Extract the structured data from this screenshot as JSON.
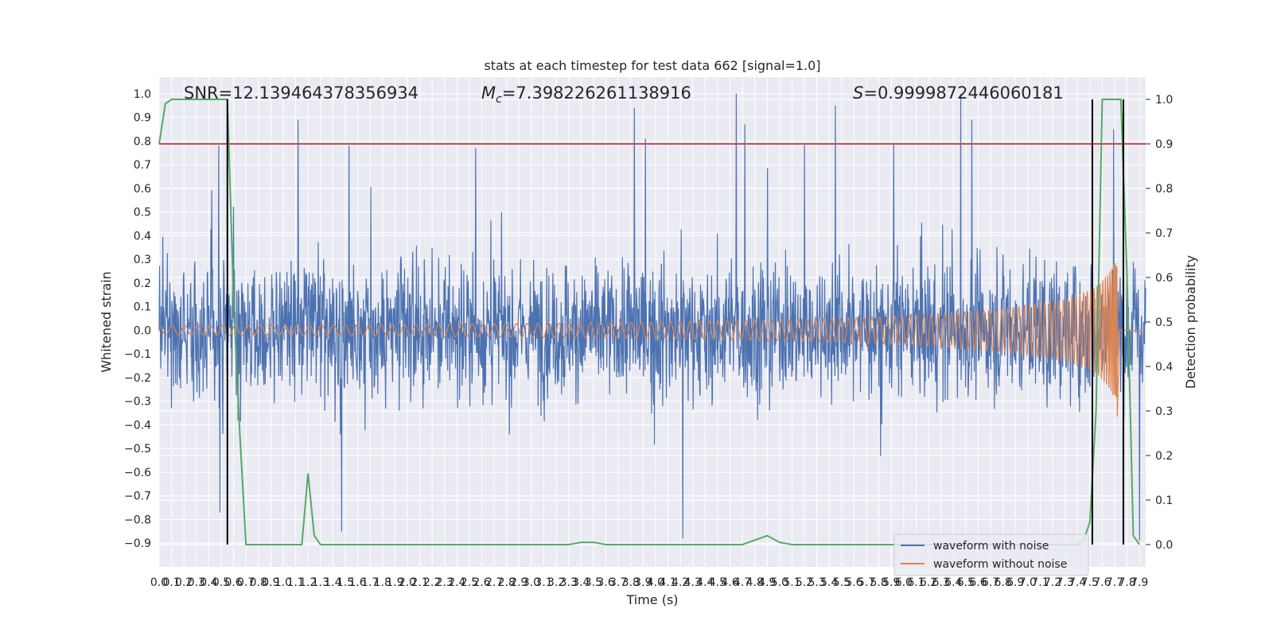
{
  "chart_data": {
    "type": "line",
    "title": "stats at each timestep for test data 662 [signal=1.0]",
    "xlabel": "Time (s)",
    "ylabel_left": "Whitened strain",
    "ylabel_right": "Detection probability",
    "xlim": [
      0.0,
      7.95
    ],
    "ylim_left": [
      -1.0,
      1.07
    ],
    "ylim_right": [
      -0.05,
      1.05
    ],
    "grid": true,
    "legend_position": "bottom-right",
    "x_ticks": [
      "0.0",
      "0.1",
      "0.2",
      "0.3",
      "0.4",
      "0.5",
      "0.6",
      "0.7",
      "0.8",
      "0.9",
      "1.0",
      "1.1",
      "1.2",
      "1.3",
      "1.4",
      "1.5",
      "1.6",
      "1.7",
      "1.8",
      "1.9",
      "2.0",
      "2.1",
      "2.2",
      "2.3",
      "2.4",
      "2.5",
      "2.6",
      "2.7",
      "2.8",
      "2.9",
      "3.0",
      "3.1",
      "3.2",
      "3.3",
      "3.4",
      "3.5",
      "3.6",
      "3.7",
      "3.8",
      "3.9",
      "4.0",
      "4.1",
      "4.2",
      "4.3",
      "4.4",
      "4.5",
      "4.6",
      "4.7",
      "4.8",
      "4.9",
      "5.0",
      "5.1",
      "5.2",
      "5.3",
      "5.4",
      "5.5",
      "5.6",
      "5.7",
      "5.8",
      "5.9",
      "6.0",
      "6.1",
      "6.2",
      "6.3",
      "6.4",
      "6.5",
      "6.6",
      "6.7",
      "6.8",
      "6.9",
      "7.0",
      "7.1",
      "7.2",
      "7.3",
      "7.4",
      "7.5",
      "7.6",
      "7.7",
      "7.8",
      "7.9"
    ],
    "y_ticks_left": [
      "-0.9",
      "-0.8",
      "-0.7",
      "-0.6",
      "-0.5",
      "-0.4",
      "-0.3",
      "-0.2",
      "-0.1",
      "0.0",
      "0.1",
      "0.2",
      "0.3",
      "0.4",
      "0.5",
      "0.6",
      "0.7",
      "0.8",
      "0.9",
      "1.0"
    ],
    "y_ticks_right": [
      "0.0",
      "0.1",
      "0.2",
      "0.3",
      "0.4",
      "0.5",
      "0.6",
      "0.7",
      "0.8",
      "0.9",
      "1.0"
    ],
    "annotations": {
      "snr": "SNR=12.139464378356934",
      "mc_symbol": "M",
      "mc_sub": "c",
      "mc_value": "=7.398226261138916",
      "s_symbol": "S",
      "s_value": "=0.9999872446060181"
    },
    "threshold": {
      "axis": "right",
      "value": 0.9,
      "color": "#c44e52"
    },
    "vertical_lines": [
      0.55,
      7.52,
      7.77
    ],
    "series": [
      {
        "name": "waveform with noise",
        "axis": "left",
        "color": "#4c72b0",
        "note": "whitened strain noise, dense oscillation within approx. -0.6..0.6 with peaks",
        "peaks": [
          {
            "x": 0.48,
            "y": 0.78
          },
          {
            "x": 1.12,
            "y": 0.89
          },
          {
            "x": 1.53,
            "y": 0.78
          },
          {
            "x": 2.55,
            "y": 0.77
          },
          {
            "x": 3.83,
            "y": 0.94
          },
          {
            "x": 3.92,
            "y": 0.81
          },
          {
            "x": 4.65,
            "y": 1.0
          },
          {
            "x": 4.72,
            "y": 0.87
          },
          {
            "x": 5.45,
            "y": 0.95
          },
          {
            "x": 5.92,
            "y": 0.79
          },
          {
            "x": 6.46,
            "y": 1.0
          },
          {
            "x": 6.55,
            "y": 0.89
          },
          {
            "x": 7.69,
            "y": 0.85
          },
          {
            "x": 0.49,
            "y": -0.77
          },
          {
            "x": 1.47,
            "y": -0.85
          },
          {
            "x": 4.22,
            "y": -0.88
          },
          {
            "x": 7.9,
            "y": -0.89
          }
        ]
      },
      {
        "name": "waveform without noise",
        "axis": "left",
        "color": "#dd8452",
        "note": "inspiral chirp: amplitude grows from ~0.02 to ~0.3 with rising frequency, merger near 7.72 s then zero",
        "envelope": [
          {
            "x": 0.0,
            "a": 0.02
          },
          {
            "x": 2.0,
            "a": 0.025
          },
          {
            "x": 4.0,
            "a": 0.035
          },
          {
            "x": 5.0,
            "a": 0.045
          },
          {
            "x": 6.0,
            "a": 0.06
          },
          {
            "x": 6.8,
            "a": 0.09
          },
          {
            "x": 7.3,
            "a": 0.13
          },
          {
            "x": 7.55,
            "a": 0.18
          },
          {
            "x": 7.65,
            "a": 0.24
          },
          {
            "x": 7.71,
            "a": 0.3
          }
        ],
        "merger_time": 7.72
      },
      {
        "name": "detection probability",
        "axis": "right",
        "color": "#55a868",
        "x": [
          0.0,
          0.05,
          0.1,
          0.2,
          0.3,
          0.4,
          0.5,
          0.55,
          0.6,
          0.65,
          0.7,
          0.8,
          0.9,
          1.0,
          1.1,
          1.15,
          1.2,
          1.25,
          1.3,
          1.4,
          1.5,
          2.0,
          2.5,
          3.0,
          3.3,
          3.4,
          3.5,
          3.6,
          4.0,
          4.5,
          4.7,
          4.8,
          4.9,
          5.0,
          5.1,
          5.5,
          6.0,
          6.5,
          7.0,
          7.3,
          7.4,
          7.45,
          7.5,
          7.55,
          7.6,
          7.65,
          7.7,
          7.75,
          7.8,
          7.85,
          7.9
        ],
        "y": [
          0.9,
          0.99,
          1.0,
          1.0,
          1.0,
          1.0,
          1.0,
          1.0,
          0.55,
          0.25,
          0.0,
          0.0,
          0.0,
          0.0,
          0.0,
          0.0,
          0.16,
          0.02,
          0.0,
          0.0,
          0.0,
          0.0,
          0.0,
          0.0,
          0.0,
          0.005,
          0.005,
          0.0,
          0.0,
          0.0,
          0.0,
          0.01,
          0.02,
          0.005,
          0.0,
          0.0,
          0.0,
          0.0,
          0.0,
          0.0,
          0.0,
          0.01,
          0.05,
          0.3,
          1.0,
          1.0,
          1.0,
          1.0,
          0.6,
          0.02,
          0.0
        ]
      }
    ],
    "legend": [
      {
        "label": "waveform with noise",
        "color": "#4c72b0"
      },
      {
        "label": "waveform without noise",
        "color": "#dd8452"
      }
    ]
  }
}
